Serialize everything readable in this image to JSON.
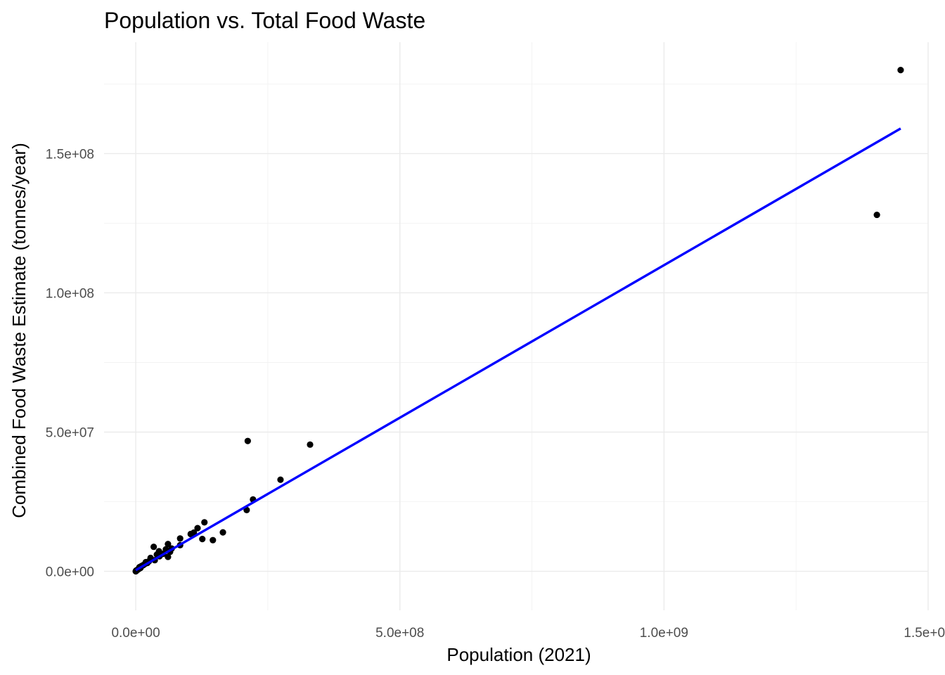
{
  "chart_data": {
    "type": "scatter",
    "title": "Population vs. Total Food Waste",
    "xlabel": "Population (2021)",
    "ylabel": "Combined Food Waste Estimate (tonnes/year)",
    "xlim": [
      -60000000,
      1500000000
    ],
    "ylim": [
      -14000000,
      190000000
    ],
    "x_ticks": [
      0,
      500000000,
      1000000000,
      1500000000
    ],
    "x_tick_labels": [
      "0.0e+00",
      "5.0e+08",
      "1.0e+09",
      "1.5e+09"
    ],
    "y_ticks": [
      0,
      50000000,
      100000000,
      150000000
    ],
    "y_tick_labels": [
      "0.0e+00",
      "5.0e+07",
      "1.0e+08",
      "1.5e+08"
    ],
    "grid": true,
    "points": {
      "color": "#000000",
      "x": [
        1448000000,
        1403000000,
        212000000,
        330000000,
        274000000,
        222000000,
        210000000,
        130000000,
        165000000,
        146000000,
        126000000,
        117000000,
        110000000,
        104000000,
        84000000,
        84000000,
        61000000,
        61000000,
        57000000,
        68000000,
        65000000,
        52000000,
        44000000,
        34000000,
        45000000,
        40000000,
        36000000,
        28000000,
        25000000,
        22000000,
        19000000,
        17000000,
        14000000,
        12000000,
        10000000,
        9000000,
        7000000,
        6000000,
        5000000,
        4000000,
        3000000,
        2000000,
        1000000,
        500000,
        200000,
        50000
      ],
      "y": [
        180000000,
        128000000,
        46800000,
        45500000,
        32900000,
        25800000,
        22000000,
        17600000,
        14000000,
        11200000,
        11600000,
        15500000,
        13900000,
        13400000,
        11800000,
        9400000,
        9800000,
        5200000,
        7900000,
        8200000,
        7000000,
        6300000,
        7200000,
        8800000,
        5400000,
        6000000,
        4000000,
        4800000,
        3600000,
        3000000,
        3300000,
        2600000,
        2200000,
        2000000,
        1800000,
        1200000,
        1500000,
        900000,
        800000,
        600000,
        500000,
        400000,
        300000,
        150000,
        60000,
        20000
      ]
    },
    "fit_line": {
      "color": "#0000ff",
      "x": [
        0,
        1448000000
      ],
      "y": [
        400000,
        159000000
      ]
    }
  }
}
